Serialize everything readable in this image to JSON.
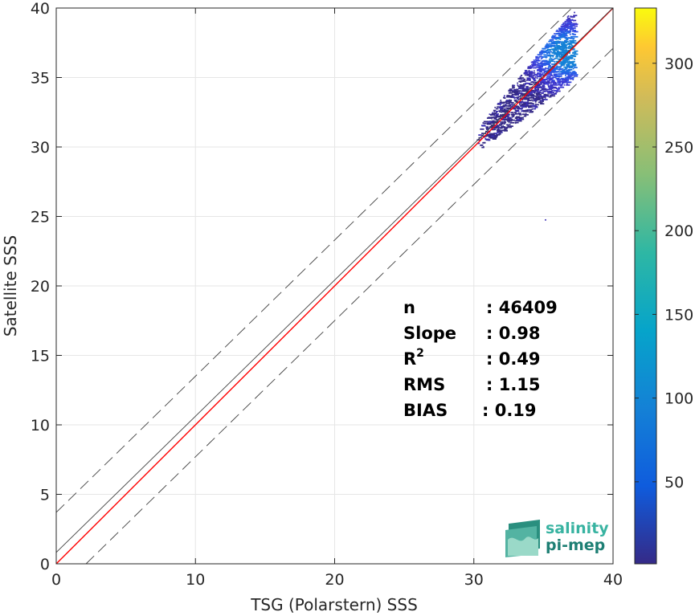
{
  "chart_data": {
    "type": "heatmap",
    "title": "",
    "xlabel": "TSG (Polarstern) SSS",
    "ylabel": "Satellite SSS",
    "xlim": [
      0,
      40
    ],
    "ylim": [
      0,
      40
    ],
    "xticks": [
      0,
      10,
      20,
      30,
      40
    ],
    "yticks": [
      0,
      5,
      10,
      15,
      20,
      25,
      30,
      35,
      40
    ],
    "grid": true,
    "colorbar": {
      "colormap": "parula",
      "range": [
        1,
        333
      ],
      "ticks": [
        50,
        100,
        150,
        200,
        250,
        300
      ]
    },
    "lines": [
      {
        "role": "identity",
        "slope": 1,
        "intercept": 0,
        "color": "#ff0000",
        "style": "solid"
      },
      {
        "role": "fit",
        "slope": 0.98,
        "intercept": 0.82,
        "color": "#404040",
        "style": "solid"
      },
      {
        "role": "upper-bound",
        "slope": 0.98,
        "intercept": 3.7,
        "color": "#404040",
        "style": "dashed"
      },
      {
        "role": "lower-bound",
        "slope": 0.98,
        "intercept": -2.1,
        "color": "#404040",
        "style": "dashed"
      }
    ],
    "density_cluster": {
      "x_range": [
        30.2,
        37.2
      ],
      "y_range": [
        30,
        39.8
      ],
      "peak_at": [
        36.5,
        36.8
      ],
      "outlier": [
        35.1,
        24.8
      ]
    },
    "stats": [
      {
        "label": "n",
        "value": ": 46409"
      },
      {
        "label": "Slope",
        "value": ": 0.98"
      },
      {
        "label": "R",
        "sup": "2",
        "value": ": 0.49"
      },
      {
        "label": "RMS",
        "value": ": 1.15"
      },
      {
        "label": "BIAS",
        "value": ": 0.19"
      }
    ]
  },
  "logo": {
    "line1": "salinity",
    "line2": "pi-mep"
  }
}
